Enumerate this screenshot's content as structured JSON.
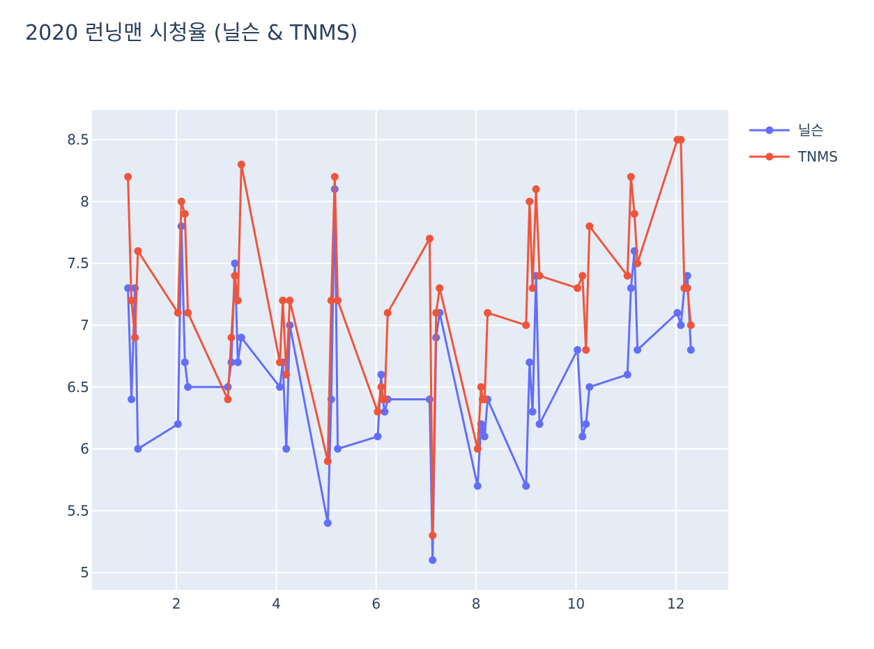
{
  "chart_data": {
    "type": "line",
    "title": "2020 런닝맨 시청율 (닐슨 & TNMS)",
    "xlabel": "",
    "ylabel": "",
    "xlim": [
      0.31,
      13.05
    ],
    "ylim": [
      4.86,
      8.74
    ],
    "xticks": [
      2,
      4,
      6,
      8,
      10,
      12
    ],
    "xtick_labels": [
      "2",
      "4",
      "6",
      "8",
      "10",
      "12"
    ],
    "yticks": [
      5,
      5.5,
      6,
      6.5,
      7,
      7.5,
      8,
      8.5
    ],
    "ytick_labels": [
      "5",
      "5.5",
      "6",
      "6.5",
      "7",
      "7.5",
      "8",
      "8.5"
    ],
    "grid": true,
    "legend_position": "top-right",
    "series": [
      {
        "name": "닐슨",
        "color": "#636efa",
        "x": [
          1.03,
          1.1,
          1.17,
          1.23,
          2.03,
          2.1,
          2.17,
          2.23,
          3.03,
          3.1,
          3.17,
          3.23,
          3.3,
          4.07,
          4.13,
          4.2,
          4.27,
          5.03,
          5.1,
          5.17,
          5.23,
          6.03,
          6.1,
          6.13,
          6.17,
          6.23,
          7.07,
          7.13,
          7.2,
          7.27,
          8.03,
          8.1,
          8.13,
          8.17,
          8.23,
          9.0,
          9.07,
          9.13,
          9.2,
          9.27,
          10.03,
          10.13,
          10.2,
          10.27,
          11.03,
          11.1,
          11.17,
          11.23,
          12.03,
          12.1,
          12.17,
          12.23,
          12.3
        ],
        "y": [
          7.3,
          6.4,
          7.3,
          6.0,
          6.2,
          7.8,
          6.7,
          6.5,
          6.5,
          6.7,
          7.5,
          6.7,
          6.9,
          6.5,
          6.7,
          6.0,
          7.0,
          5.4,
          6.4,
          8.1,
          6.0,
          6.1,
          6.6,
          6.4,
          6.3,
          6.4,
          6.4,
          5.1,
          6.9,
          7.1,
          5.7,
          6.2,
          6.15,
          6.1,
          6.4,
          5.7,
          6.7,
          6.3,
          7.4,
          6.2,
          6.8,
          6.1,
          6.2,
          6.5,
          6.6,
          7.3,
          7.6,
          6.8,
          7.1,
          7.0,
          7.3,
          7.4,
          6.8
        ]
      },
      {
        "name": "TNMS",
        "color": "#ef553b",
        "x": [
          1.03,
          1.1,
          1.17,
          1.23,
          2.03,
          2.1,
          2.17,
          2.23,
          3.03,
          3.1,
          3.17,
          3.23,
          3.3,
          4.07,
          4.13,
          4.2,
          4.27,
          5.03,
          5.1,
          5.17,
          5.23,
          6.03,
          6.1,
          6.13,
          6.17,
          6.23,
          7.07,
          7.13,
          7.2,
          7.27,
          8.03,
          8.1,
          8.13,
          8.17,
          8.23,
          9.0,
          9.07,
          9.13,
          9.2,
          9.27,
          10.03,
          10.13,
          10.2,
          10.27,
          11.03,
          11.1,
          11.17,
          11.23,
          12.03,
          12.1,
          12.17,
          12.23,
          12.3
        ],
        "y": [
          8.2,
          7.2,
          6.9,
          7.6,
          7.1,
          8.0,
          7.9,
          7.1,
          6.4,
          6.9,
          7.4,
          7.2,
          8.3,
          6.7,
          7.2,
          6.6,
          7.2,
          5.9,
          7.2,
          8.2,
          7.2,
          6.3,
          6.5,
          6.4,
          6.4,
          7.1,
          7.7,
          5.3,
          7.1,
          7.3,
          6.0,
          6.5,
          6.4,
          6.4,
          7.1,
          7.0,
          8.0,
          7.3,
          8.1,
          7.4,
          7.3,
          7.4,
          6.8,
          7.8,
          7.4,
          8.2,
          7.9,
          7.5,
          8.5,
          8.5,
          7.3,
          7.3,
          7.0
        ]
      }
    ]
  }
}
